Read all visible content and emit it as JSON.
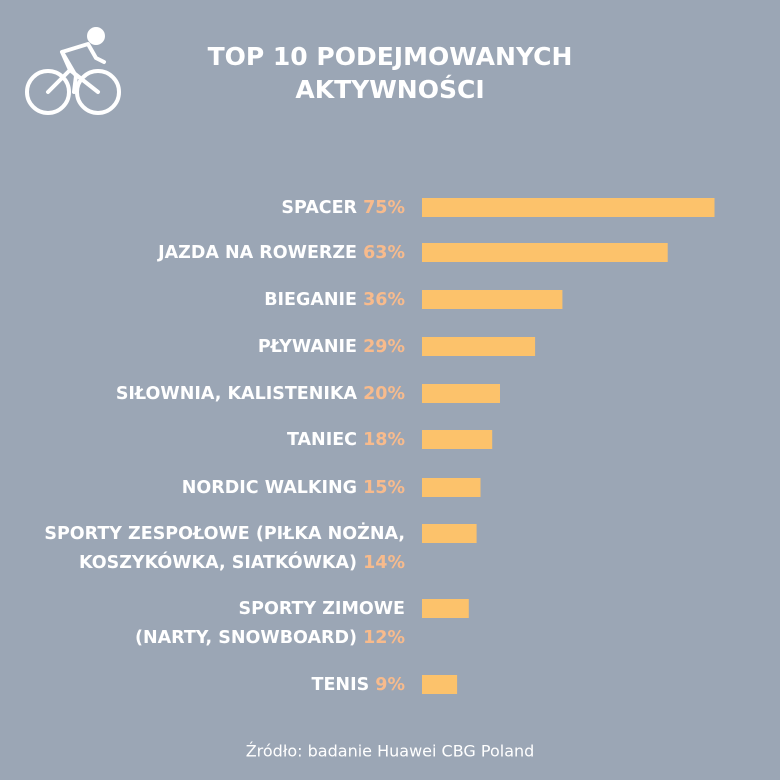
{
  "chart_data": {
    "type": "bar",
    "orientation": "horizontal",
    "title": [
      "TOP 10 PODEJMOWANYCH",
      "AKTYWNOŚCI"
    ],
    "categories": [
      [
        "SPACER"
      ],
      [
        "JAZDA NA ROWERZE"
      ],
      [
        "BIEGANIE"
      ],
      [
        "PŁYWANIE"
      ],
      [
        "SIŁOWNIA, KALISTENIKA"
      ],
      [
        "TANIEC"
      ],
      [
        "NORDIC WALKING"
      ],
      [
        "SPORTY ZESPOŁOWE (PIŁKA NOŻNA,",
        "KOSZYKÓWKA, SIATKÓWKA)"
      ],
      [
        "SPORTY ZIMOWE",
        "(NARTY, SNOWBOARD)"
      ],
      [
        "TENIS"
      ]
    ],
    "values": [
      75,
      63,
      36,
      29,
      20,
      18,
      15,
      14,
      12,
      9
    ],
    "value_labels": [
      "75%",
      "63%",
      "36%",
      "29%",
      "20%",
      "18%",
      "15%",
      "14%",
      "12%",
      "9%"
    ],
    "color": "#fcc26b",
    "label_color": "#f8bb8c",
    "source": "Źródło: badanie Huawei CBG Poland"
  }
}
